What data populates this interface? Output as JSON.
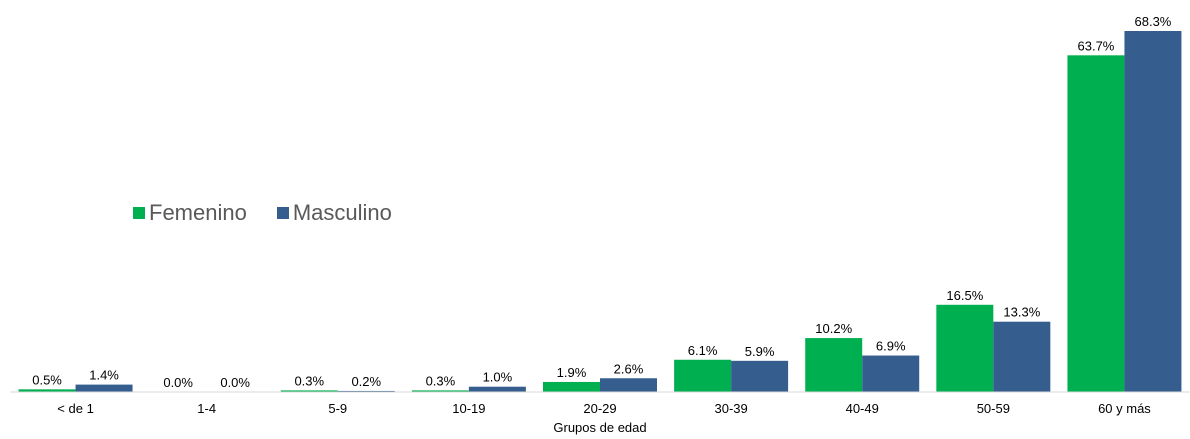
{
  "chart_data": {
    "type": "bar",
    "categories": [
      "< de 1",
      "1-4",
      "5-9",
      "10-19",
      "20-29",
      "30-39",
      "40-49",
      "50-59",
      "60 y más"
    ],
    "series": [
      {
        "name": "Femenino",
        "color": "#00B050",
        "values": [
          0.5,
          0.0,
          0.3,
          0.3,
          1.9,
          6.1,
          10.2,
          16.5,
          63.7
        ],
        "labels": [
          "0.5%",
          "0.0%",
          "0.3%",
          "0.3%",
          "1.9%",
          "6.1%",
          "10.2%",
          "16.5%",
          "63.7%"
        ]
      },
      {
        "name": "Masculino",
        "color": "#355E8F",
        "values": [
          1.4,
          0.0,
          0.2,
          1.0,
          2.6,
          5.9,
          6.9,
          13.3,
          68.3
        ],
        "labels": [
          "1.4%",
          "0.0%",
          "0.2%",
          "1.0%",
          "2.6%",
          "5.9%",
          "6.9%",
          "13.3%",
          "68.3%"
        ]
      }
    ],
    "xlabel": "Grupos de edad",
    "ylabel": "",
    "ylim": [
      0,
      68.3
    ],
    "grid": false,
    "legend_position": "middle-left"
  }
}
